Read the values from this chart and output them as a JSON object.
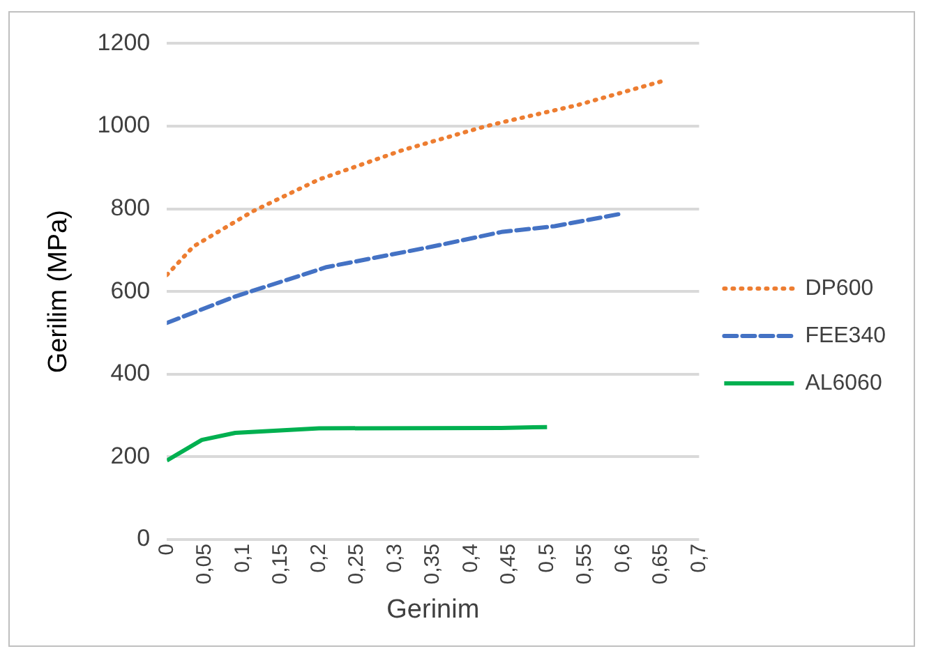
{
  "chart_data": {
    "type": "line",
    "xlabel": "Gerinim",
    "ylabel": "Gerilim (MPa)",
    "xlim": [
      0,
      0.7
    ],
    "xticks": [
      0,
      {
        "value": 0.05,
        "label": "0,05"
      },
      {
        "value": 0.1,
        "label": "0,1"
      },
      {
        "value": 0.15,
        "label": "0,15"
      },
      {
        "value": 0.2,
        "label": "0,2"
      },
      {
        "value": 0.25,
        "label": "0,25"
      },
      {
        "value": 0.3,
        "label": "0,3"
      },
      {
        "value": 0.35,
        "label": "0,35"
      },
      {
        "value": 0.4,
        "label": "0,4"
      },
      {
        "value": 0.45,
        "label": "0,45"
      },
      {
        "value": 0.5,
        "label": "0,5"
      },
      {
        "value": 0.55,
        "label": "0,55"
      },
      {
        "value": 0.6,
        "label": "0,6"
      },
      {
        "value": 0.65,
        "label": "0,65"
      },
      {
        "value": 0.7,
        "label": "0,7"
      }
    ],
    "ylim": [
      0,
      1200
    ],
    "yticks": [
      0,
      200,
      400,
      600,
      800,
      1000,
      1200
    ],
    "grid": "y",
    "legend": "right",
    "marker": "none",
    "series": [
      {
        "name": "DP600",
        "color": "#ed7d31",
        "line_style": "dotted",
        "x": [
          0,
          0.035,
          0.113,
          0.2,
          0.31,
          0.41,
          0.44,
          0.54,
          0.65
        ],
        "values": [
          640,
          709,
          794,
          871,
          942,
          995,
          1009,
          1051,
          1108
        ]
      },
      {
        "name": "FEE340",
        "color": "#4472c4",
        "line_style": "dashed",
        "x": [
          0,
          0.09,
          0.21,
          0.35,
          0.44,
          0.51,
          0.6
        ],
        "values": [
          524,
          588,
          659,
          709,
          744,
          758,
          789
        ]
      },
      {
        "name": "AL6060",
        "color": "#00b050",
        "line_style": "solid",
        "x": [
          0,
          0.046,
          0.09,
          0.2,
          0.44,
          0.5
        ],
        "values": [
          191,
          241,
          258,
          269,
          270,
          272
        ]
      }
    ]
  }
}
